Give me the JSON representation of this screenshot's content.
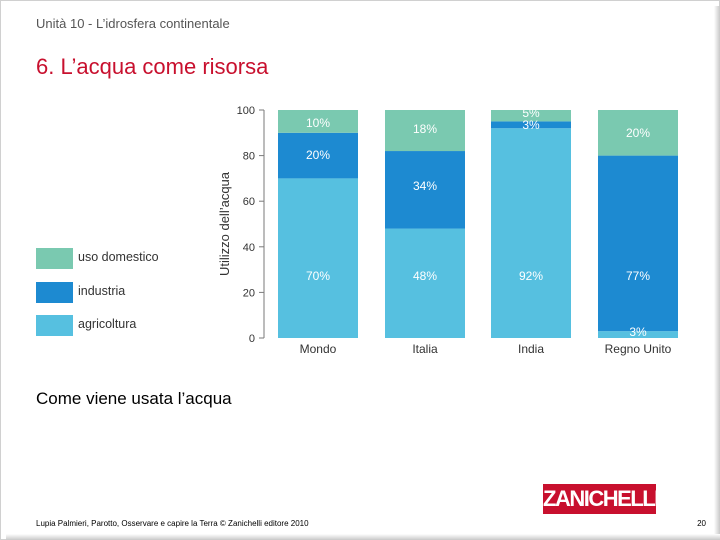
{
  "header": {
    "unit": "Unità 10 - L’idrosfera continentale",
    "title": "6. L’acqua come risorsa"
  },
  "caption": "Come viene usata l’acqua",
  "footer": {
    "credits": "Lupia Palmieri, Parotto, Osservare e capire la Terra © Zanichelli editore 2010",
    "page": "20",
    "logo": "ZANICHELLI"
  },
  "legend": {
    "items": [
      {
        "label": "uso domestico",
        "color": "#7ac9b0"
      },
      {
        "label": "industria",
        "color": "#1d8ad1"
      },
      {
        "label": "agricoltura",
        "color": "#56c0e0"
      }
    ]
  },
  "chart_data": {
    "type": "bar",
    "stacked": true,
    "categories": [
      "Mondo",
      "Italia",
      "India",
      "Regno Unito"
    ],
    "series": [
      {
        "name": "agricoltura",
        "color": "#56c0e0",
        "values": [
          70,
          48,
          92,
          3
        ]
      },
      {
        "name": "industria",
        "color": "#1d8ad1",
        "values": [
          20,
          34,
          3,
          77
        ]
      },
      {
        "name": "uso domestico",
        "color": "#7ac9b0",
        "values": [
          10,
          18,
          5,
          20
        ]
      }
    ],
    "data_labels": [
      [
        "70%",
        "48%",
        "92%",
        "3%"
      ],
      [
        "20%",
        "34%",
        "3%",
        "77%"
      ],
      [
        "10%",
        "18%",
        "5%",
        "20%"
      ]
    ],
    "ylabel": "Utilizzo dell’acqua",
    "xlabel": "",
    "ylim": [
      0,
      100
    ],
    "yticks": [
      0,
      20,
      40,
      60,
      80,
      100
    ],
    "grid": false,
    "legend_position": "left"
  }
}
